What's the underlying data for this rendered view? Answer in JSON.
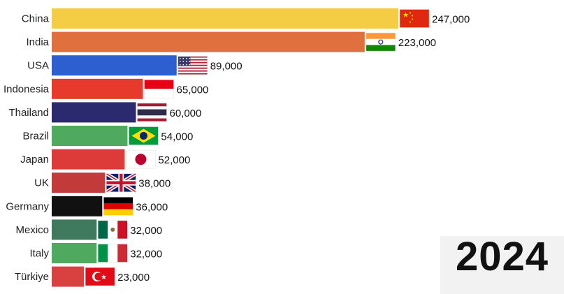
{
  "year": "2024",
  "chart_data": {
    "type": "bar",
    "orientation": "horizontal",
    "title": "",
    "xlabel": "",
    "ylabel": "",
    "categories": [
      "China",
      "India",
      "USA",
      "Indonesia",
      "Thailand",
      "Brazil",
      "Japan",
      "UK",
      "Germany",
      "Mexico",
      "Italy",
      "Türkiye"
    ],
    "values": [
      247000,
      223000,
      89000,
      65000,
      60000,
      54000,
      52000,
      38000,
      36000,
      32000,
      32000,
      23000
    ],
    "value_labels": [
      "247,000",
      "223,000",
      "89,000",
      "65,000",
      "60,000",
      "54,000",
      "52,000",
      "38,000",
      "36,000",
      "32,000",
      "32,000",
      "23,000"
    ],
    "bar_colors": [
      "#f5cd45",
      "#e0703e",
      "#2e5fd0",
      "#e73a2c",
      "#2c2a6e",
      "#4faa5f",
      "#dd3a3a",
      "#c23a3a",
      "#111111",
      "#3f7a5f",
      "#4faa5f",
      "#d94040"
    ],
    "flag_icons": [
      "china-flag-icon",
      "india-flag-icon",
      "usa-flag-icon",
      "indonesia-flag-icon",
      "thailand-flag-icon",
      "brazil-flag-icon",
      "japan-flag-icon",
      "uk-flag-icon",
      "germany-flag-icon",
      "mexico-flag-icon",
      "italy-flag-icon",
      "turkiye-flag-icon"
    ],
    "grid": false,
    "legend": "none"
  }
}
